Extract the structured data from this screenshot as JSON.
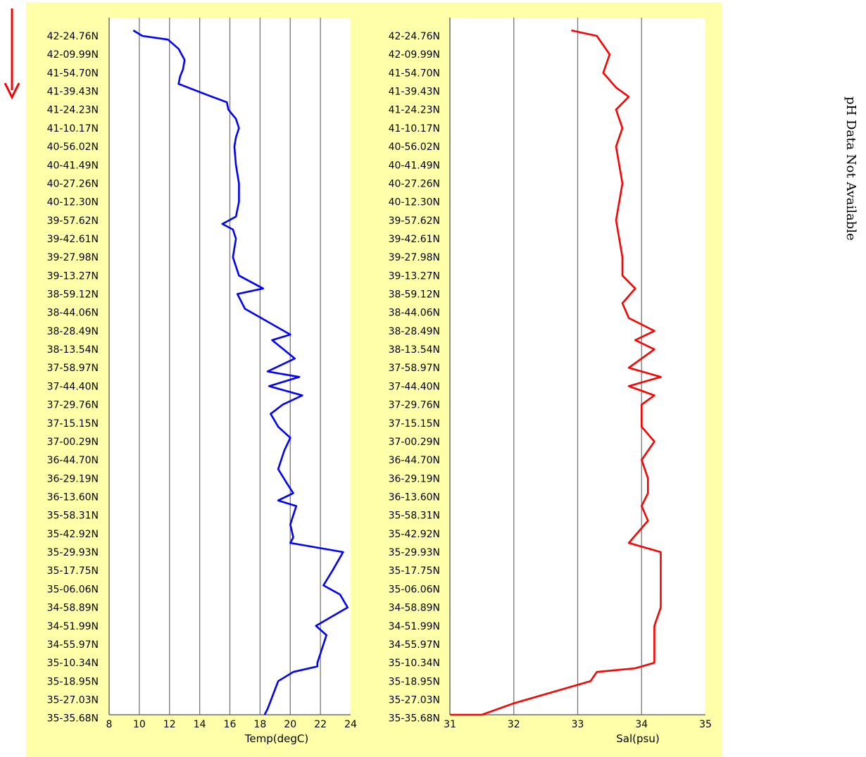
{
  "chart_data": [
    {
      "type": "line",
      "title": "",
      "xlabel": "Temp(degC)",
      "ylabel": "",
      "xlim": [
        8,
        24
      ],
      "x_ticks": [
        "8",
        "10",
        "12",
        "14",
        "16",
        "18",
        "20",
        "22",
        "24"
      ],
      "grid": true,
      "y_categories": [
        "42-24.76N",
        "42-09.99N",
        "41-54.70N",
        "41-39.43N",
        "41-24.23N",
        "41-10.17N",
        "40-56.02N",
        "40-41.49N",
        "40-27.26N",
        "40-12.30N",
        "39-57.62N",
        "39-42.61N",
        "39-27.98N",
        "39-13.27N",
        "38-59.12N",
        "38-44.06N",
        "38-28.49N",
        "38-13.54N",
        "37-58.97N",
        "37-44.40N",
        "37-29.76N",
        "37-15.15N",
        "37-00.29N",
        "36-44.70N",
        "36-29.19N",
        "36-13.60N",
        "35-58.31N",
        "35-42.92N",
        "35-29.93N",
        "35-17.75N",
        "35-06.06N",
        "34-58.89N",
        "34-51.99N",
        "34-55.97N",
        "35-10.34N",
        "35-18.95N",
        "35-27.03N",
        "35-35.68N"
      ],
      "series": [
        {
          "color": "#0000ff",
          "profile": [
            [
              9.6,
              -0.3
            ],
            [
              10.2,
              0.0
            ],
            [
              11.9,
              0.2
            ],
            [
              12.6,
              0.7
            ],
            [
              13.0,
              1.3
            ],
            [
              12.9,
              1.8
            ],
            [
              12.7,
              2.2
            ],
            [
              12.6,
              2.6
            ],
            [
              14.5,
              3.2
            ],
            [
              15.8,
              3.6
            ],
            [
              15.9,
              4.0
            ],
            [
              16.4,
              4.5
            ],
            [
              16.6,
              5.0
            ],
            [
              16.4,
              5.5
            ],
            [
              16.3,
              6.0
            ],
            [
              16.4,
              7.0
            ],
            [
              16.6,
              8.0
            ],
            [
              16.6,
              9.0
            ],
            [
              16.4,
              9.8
            ],
            [
              15.5,
              10.2
            ],
            [
              16.2,
              10.5
            ],
            [
              16.4,
              11.0
            ],
            [
              16.2,
              12.0
            ],
            [
              16.6,
              13.0
            ],
            [
              18.2,
              13.7
            ],
            [
              16.5,
              14.0
            ],
            [
              17.0,
              14.8
            ],
            [
              18.5,
              15.5
            ],
            [
              20.0,
              16.2
            ],
            [
              18.8,
              16.5
            ],
            [
              20.3,
              17.5
            ],
            [
              18.5,
              18.2
            ],
            [
              20.6,
              18.5
            ],
            [
              18.6,
              19.0
            ],
            [
              20.8,
              19.5
            ],
            [
              19.5,
              20.0
            ],
            [
              18.7,
              20.5
            ],
            [
              19.2,
              21.2
            ],
            [
              20.0,
              21.8
            ],
            [
              19.6,
              22.5
            ],
            [
              19.2,
              23.5
            ],
            [
              19.8,
              24.3
            ],
            [
              20.2,
              24.8
            ],
            [
              19.2,
              25.2
            ],
            [
              20.4,
              25.5
            ],
            [
              20.0,
              26.5
            ],
            [
              20.2,
              27.2
            ],
            [
              20.0,
              27.5
            ],
            [
              23.5,
              28.0
            ],
            [
              22.8,
              29.0
            ],
            [
              22.2,
              29.8
            ],
            [
              23.3,
              30.3
            ],
            [
              23.8,
              31.0
            ],
            [
              21.7,
              32.0
            ],
            [
              22.4,
              32.5
            ],
            [
              21.8,
              34.0
            ],
            [
              21.8,
              34.2
            ],
            [
              20.2,
              34.5
            ],
            [
              19.2,
              35.0
            ],
            [
              18.5,
              36.5
            ],
            [
              18.3,
              37.7
            ]
          ]
        }
      ]
    },
    {
      "type": "line",
      "title": "",
      "xlabel": "Sal(psu)",
      "ylabel": "",
      "xlim": [
        31,
        35
      ],
      "x_ticks": [
        "31",
        "32",
        "33",
        "34",
        "35"
      ],
      "grid": true,
      "y_categories": [
        "42-24.76N",
        "42-09.99N",
        "41-54.70N",
        "41-39.43N",
        "41-24.23N",
        "41-10.17N",
        "40-56.02N",
        "40-41.49N",
        "40-27.26N",
        "40-12.30N",
        "39-57.62N",
        "39-42.61N",
        "39-27.98N",
        "39-13.27N",
        "38-59.12N",
        "38-44.06N",
        "38-28.49N",
        "38-13.54N",
        "37-58.97N",
        "37-44.40N",
        "37-29.76N",
        "37-15.15N",
        "37-00.29N",
        "36-44.70N",
        "36-29.19N",
        "36-13.60N",
        "35-58.31N",
        "35-42.92N",
        "35-29.93N",
        "35-17.75N",
        "35-06.06N",
        "34-58.89N",
        "34-51.99N",
        "34-55.97N",
        "35-10.34N",
        "35-18.95N",
        "35-27.03N",
        "35-35.68N"
      ],
      "series": [
        {
          "color": "#ff0000",
          "profile": [
            [
              32.9,
              -0.3
            ],
            [
              33.3,
              0.0
            ],
            [
              33.5,
              1.0
            ],
            [
              33.4,
              2.0
            ],
            [
              33.6,
              2.8
            ],
            [
              33.8,
              3.3
            ],
            [
              33.6,
              4.0
            ],
            [
              33.7,
              5.0
            ],
            [
              33.6,
              6.0
            ],
            [
              33.7,
              8.0
            ],
            [
              33.6,
              10.0
            ],
            [
              33.7,
              12.0
            ],
            [
              33.7,
              13.0
            ],
            [
              33.9,
              13.7
            ],
            [
              33.7,
              14.5
            ],
            [
              33.8,
              15.3
            ],
            [
              34.2,
              16.0
            ],
            [
              33.9,
              16.5
            ],
            [
              34.2,
              17.0
            ],
            [
              33.8,
              18.0
            ],
            [
              34.3,
              18.5
            ],
            [
              33.8,
              19.0
            ],
            [
              34.2,
              19.5
            ],
            [
              34.0,
              20.0
            ],
            [
              34.0,
              21.2
            ],
            [
              34.2,
              22.0
            ],
            [
              34.0,
              23.0
            ],
            [
              34.1,
              24.0
            ],
            [
              34.1,
              24.8
            ],
            [
              34.0,
              25.5
            ],
            [
              34.1,
              26.3
            ],
            [
              33.8,
              27.5
            ],
            [
              34.3,
              28.0
            ],
            [
              34.3,
              29.0
            ],
            [
              34.3,
              31.0
            ],
            [
              34.2,
              32.0
            ],
            [
              34.2,
              33.0
            ],
            [
              34.2,
              34.0
            ],
            [
              33.9,
              34.3
            ],
            [
              33.3,
              34.5
            ],
            [
              33.2,
              35.0
            ],
            [
              32.5,
              35.7
            ],
            [
              32.0,
              36.2
            ],
            [
              31.5,
              37.5
            ],
            [
              31.0,
              37.7
            ]
          ]
        }
      ]
    }
  ],
  "side_note": "pH Data Not Available",
  "colors": {
    "panel_background": "#ffffaa",
    "plot_background": "#ffffff",
    "grid": "#777777",
    "direction_arrow": "#ff0000"
  }
}
